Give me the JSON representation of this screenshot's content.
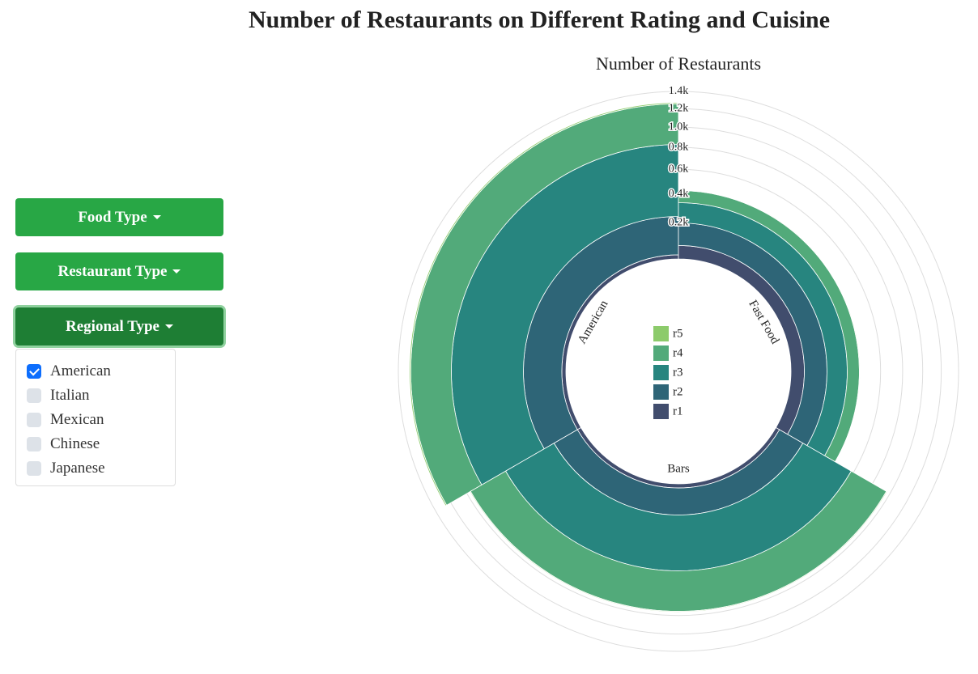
{
  "page_title": "Number of Restaurants on Different Rating and Cuisine",
  "controls": {
    "buttons": [
      "Food Type",
      "Restaurant Type",
      "Regional Type"
    ],
    "options": [
      {
        "label": "American",
        "checked": true
      },
      {
        "label": "Italian",
        "checked": false
      },
      {
        "label": "Mexican",
        "checked": false
      },
      {
        "label": "Chinese",
        "checked": false
      },
      {
        "label": "Japanese",
        "checked": false
      }
    ]
  },
  "chart_data": {
    "type": "radial-stacked-bar",
    "title": "Number of Restaurants",
    "categories": [
      "American",
      "Fast Food",
      "Bars"
    ],
    "series": [
      {
        "name": "r1",
        "color": "#414d6d",
        "values": [
          20,
          68,
          20
        ]
      },
      {
        "name": "r2",
        "color": "#2e6577",
        "values": [
          222,
          132,
          150
        ]
      },
      {
        "name": "r3",
        "color": "#27857f",
        "values": [
          586,
          137,
          408
        ]
      },
      {
        "name": "r4",
        "color": "#52aa7a",
        "values": [
          427,
          90,
          379
        ]
      },
      {
        "name": "r5",
        "color": "#8ccb6b",
        "values": [
          15,
          5,
          8
        ]
      }
    ],
    "ylim": [
      0,
      1400
    ],
    "yticks": [
      {
        "value": 200,
        "label": "0.2k"
      },
      {
        "value": 400,
        "label": "0.4k"
      },
      {
        "value": 600,
        "label": "0.6k"
      },
      {
        "value": 800,
        "label": "0.8k"
      },
      {
        "value": 1000,
        "label": "1.0k"
      },
      {
        "value": 1200,
        "label": "1.2k"
      },
      {
        "value": 1400,
        "label": "1.4k"
      }
    ],
    "grid": true
  }
}
